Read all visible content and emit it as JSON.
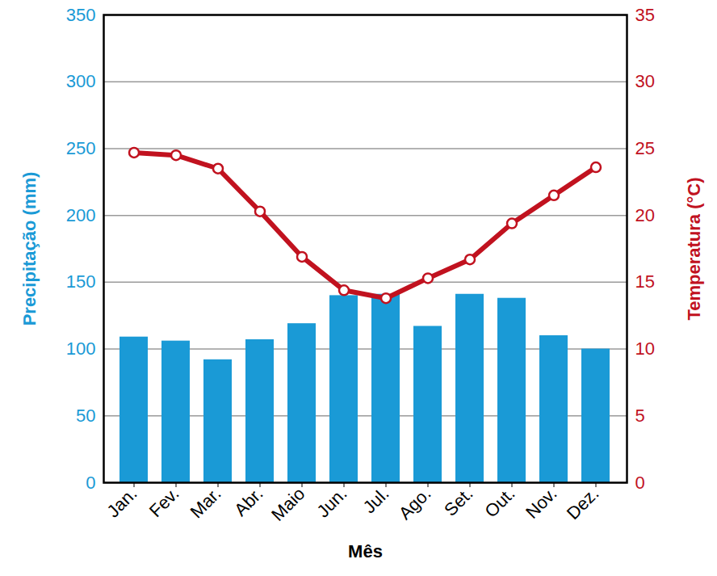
{
  "chart_data": {
    "type": "bar",
    "categories": [
      "Jan.",
      "Fev.",
      "Mar.",
      "Abr.",
      "Maio",
      "Jun.",
      "Jul.",
      "Ago.",
      "Set.",
      "Out.",
      "Nov.",
      "Dez."
    ],
    "xlabel": "Mês",
    "series": [
      {
        "name": "Precipitação (mm)",
        "type": "bar",
        "color": "#1a9ad6",
        "values": [
          109,
          106,
          92,
          107,
          119,
          140,
          141,
          117,
          141,
          138,
          110,
          100
        ]
      },
      {
        "name": "Temperatura (°C)",
        "type": "line",
        "axis": "y2",
        "color": "#c1121f",
        "marker": "circle",
        "values": [
          24.7,
          24.5,
          23.5,
          20.3,
          16.9,
          14.4,
          13.8,
          15.3,
          16.7,
          19.4,
          21.5,
          23.6
        ]
      }
    ],
    "ylim": [
      0,
      350
    ],
    "yticks": [
      0,
      50,
      100,
      150,
      200,
      250,
      300,
      350
    ],
    "y2lim": [
      0,
      35
    ],
    "y2ticks": [
      0,
      5,
      10,
      15,
      20,
      25,
      30,
      35
    ],
    "grid": true
  }
}
